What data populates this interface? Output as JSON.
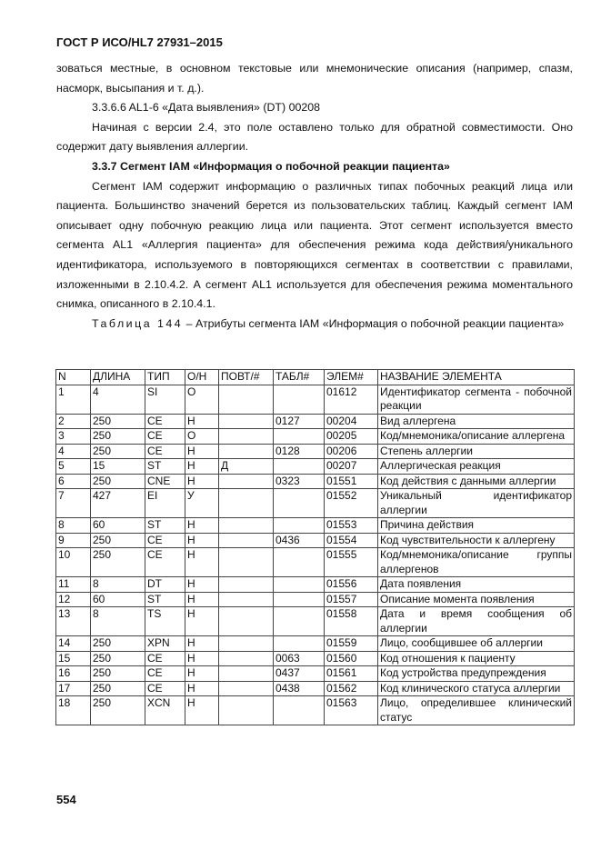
{
  "header": "ГОСТ Р ИСО/HL7 27931–2015",
  "paragraphs": [
    "зоваться местные, в основном текстовые или мнемонические описания (например, спазм, насморк, высыпания и т. д.).",
    "3.3.6.6 AL1-6 «Дата выявления» (DT) 00208",
    "Начиная с версии 2.4, это поле оставлено только для обратной совместимости. Оно содержит дату выявления аллергии.",
    "3.3.7 Сегмент IAM «Информация о побочной реакции пациента»",
    "Сегмент IAM содержит информацию о различных типах побочных реакций лица или пациента. Большинство значений берется из пользовательских таблиц. Каждый сегмент IAM описывает одну побочную реакцию лица или пациента. Этот сегмент используется вместо сегмента AL1 «Аллергия пациента» для обеспечения режима кода действия/уникального идентификатора, используемого в повторяющихся сегментах в соответствии с правилами, изложенными в 2.10.4.2. А сегмент AL1 используется для обеспечения режима моментального снимка, описанного в 2.10.4.1."
  ],
  "table_caption_label": "Таблица 144",
  "table_caption_text": " – Атрибуты сегмента IAM «Информация о побочной реакции пациента»",
  "table": {
    "headers": [
      "N",
      "ДЛИНА",
      "ТИП",
      "О/Н",
      "ПОВТ/#",
      "ТАБЛ#",
      "ЭЛЕМ#",
      "НАЗВАНИЕ ЭЛЕМЕНТА"
    ],
    "rows": [
      [
        "1",
        "4",
        "SI",
        "О",
        "",
        "",
        "01612",
        "Идентификатор сегмента - побочной реакции"
      ],
      [
        "2",
        "250",
        "CE",
        "Н",
        "",
        "0127",
        "00204",
        "Вид аллергена"
      ],
      [
        "3",
        "250",
        "CE",
        "О",
        "",
        "",
        "00205",
        "Код/мнемоника/описание аллергена"
      ],
      [
        "4",
        "250",
        "CE",
        "Н",
        "",
        "0128",
        "00206",
        "Степень аллергии"
      ],
      [
        "5",
        "15",
        "ST",
        "Н",
        "Д",
        "",
        "00207",
        "Аллергическая реакция"
      ],
      [
        "6",
        "250",
        "CNE",
        "Н",
        "",
        "0323",
        "01551",
        "Код действия с данными аллергии"
      ],
      [
        "7",
        "427",
        "EI",
        "У",
        "",
        "",
        "01552",
        "Уникальный идентификатор аллергии"
      ],
      [
        "8",
        "60",
        "ST",
        "Н",
        "",
        "",
        "01553",
        "Причина действия"
      ],
      [
        "9",
        "250",
        "CE",
        "Н",
        "",
        "0436",
        "01554",
        "Код чувствительности к аллергену"
      ],
      [
        "10",
        "250",
        "CE",
        "Н",
        "",
        "",
        "01555",
        "Код/мнемоника/описание группы аллергенов"
      ],
      [
        "11",
        "8",
        "DT",
        "Н",
        "",
        "",
        "01556",
        "Дата появления"
      ],
      [
        "12",
        "60",
        "ST",
        "Н",
        "",
        "",
        "01557",
        "Описание момента появления"
      ],
      [
        "13",
        "8",
        "TS",
        "Н",
        "",
        "",
        "01558",
        "Дата и время сообщения об аллергии"
      ],
      [
        "14",
        "250",
        "XPN",
        "Н",
        "",
        "",
        "01559",
        "Лицо, сообщившее об аллергии"
      ],
      [
        "15",
        "250",
        "CE",
        "Н",
        "",
        "0063",
        "01560",
        "Код отношения к пациенту"
      ],
      [
        "16",
        "250",
        "CE",
        "Н",
        "",
        "0437",
        "01561",
        "Код устройства предупреждения"
      ],
      [
        "17",
        "250",
        "CE",
        "Н",
        "",
        "0438",
        "01562",
        "Код клинического статуса аллергии"
      ],
      [
        "18",
        "250",
        "XCN",
        "Н",
        "",
        "",
        "01563",
        "Лицо, определившее клинический статус"
      ]
    ]
  },
  "page_number": "554"
}
